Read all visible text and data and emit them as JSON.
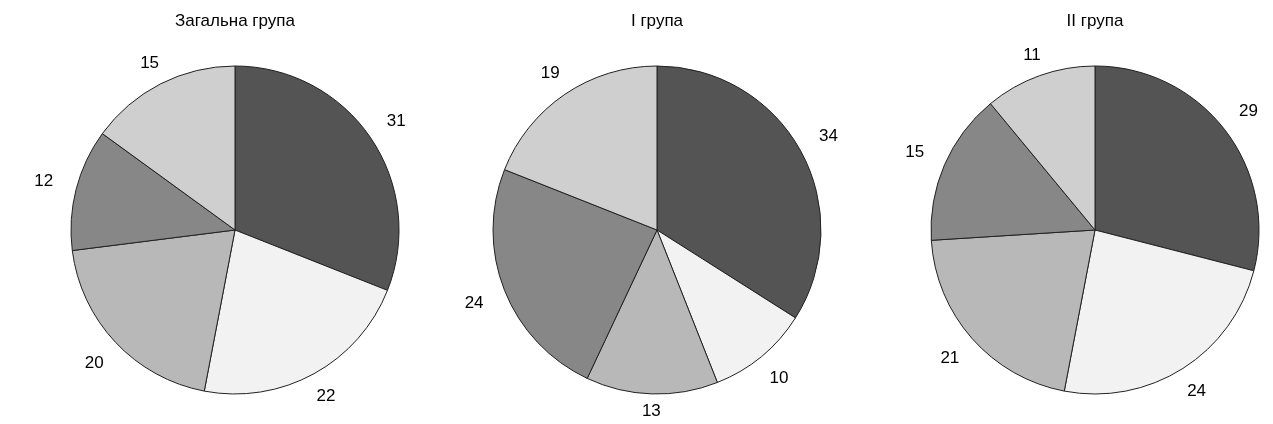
{
  "chart_data": [
    {
      "type": "pie",
      "title": "Загальна група",
      "categories": [
        null,
        null,
        null,
        null,
        null
      ],
      "values": [
        31,
        22,
        20,
        12,
        15
      ],
      "colors": [
        "#545454",
        "#f2f2f2",
        "#b8b8b8",
        "#878787",
        "#cfcfcf"
      ],
      "data_labels": true
    },
    {
      "type": "pie",
      "title": "I група",
      "categories": [
        null,
        null,
        null,
        null,
        null
      ],
      "values": [
        34,
        10,
        13,
        24,
        19
      ],
      "colors": [
        "#545454",
        "#f2f2f2",
        "#b8b8b8",
        "#878787",
        "#cfcfcf"
      ],
      "data_labels": true
    },
    {
      "type": "pie",
      "title": "II група",
      "categories": [
        null,
        null,
        null,
        null,
        null
      ],
      "values": [
        29,
        24,
        21,
        15,
        11
      ],
      "colors": [
        "#545454",
        "#f2f2f2",
        "#b8b8b8",
        "#878787",
        "#cfcfcf"
      ],
      "data_labels": true
    }
  ]
}
